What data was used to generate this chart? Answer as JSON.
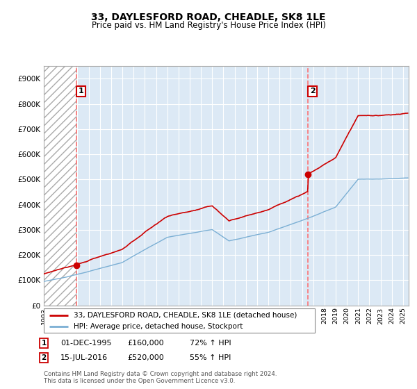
{
  "title": "33, DAYLESFORD ROAD, CHEADLE, SK8 1LE",
  "subtitle": "Price paid vs. HM Land Registry's House Price Index (HPI)",
  "legend_line1": "33, DAYLESFORD ROAD, CHEADLE, SK8 1LE (detached house)",
  "legend_line2": "HPI: Average price, detached house, Stockport",
  "footnote1": "Contains HM Land Registry data © Crown copyright and database right 2024.",
  "footnote2": "This data is licensed under the Open Government Licence v3.0.",
  "sale1_date": 1995.917,
  "sale1_price": 160000,
  "sale1_label": "1",
  "sale1_table": "01-DEC-1995",
  "sale1_price_str": "£160,000",
  "sale1_pct": "72% ↑ HPI",
  "sale2_date": 2016.542,
  "sale2_price": 520000,
  "sale2_label": "2",
  "sale2_table": "15-JUL-2016",
  "sale2_price_str": "£520,000",
  "sale2_pct": "55% ↑ HPI",
  "red_line_color": "#cc0000",
  "blue_line_color": "#7bafd4",
  "dashed_color": "#ff6666",
  "hatch_color": "#bbbbbb",
  "plot_bg_color": "#dce9f5",
  "ylim_max": 950000,
  "ylim_min": 0,
  "xlim_min": 1993,
  "xlim_max": 2025.5
}
